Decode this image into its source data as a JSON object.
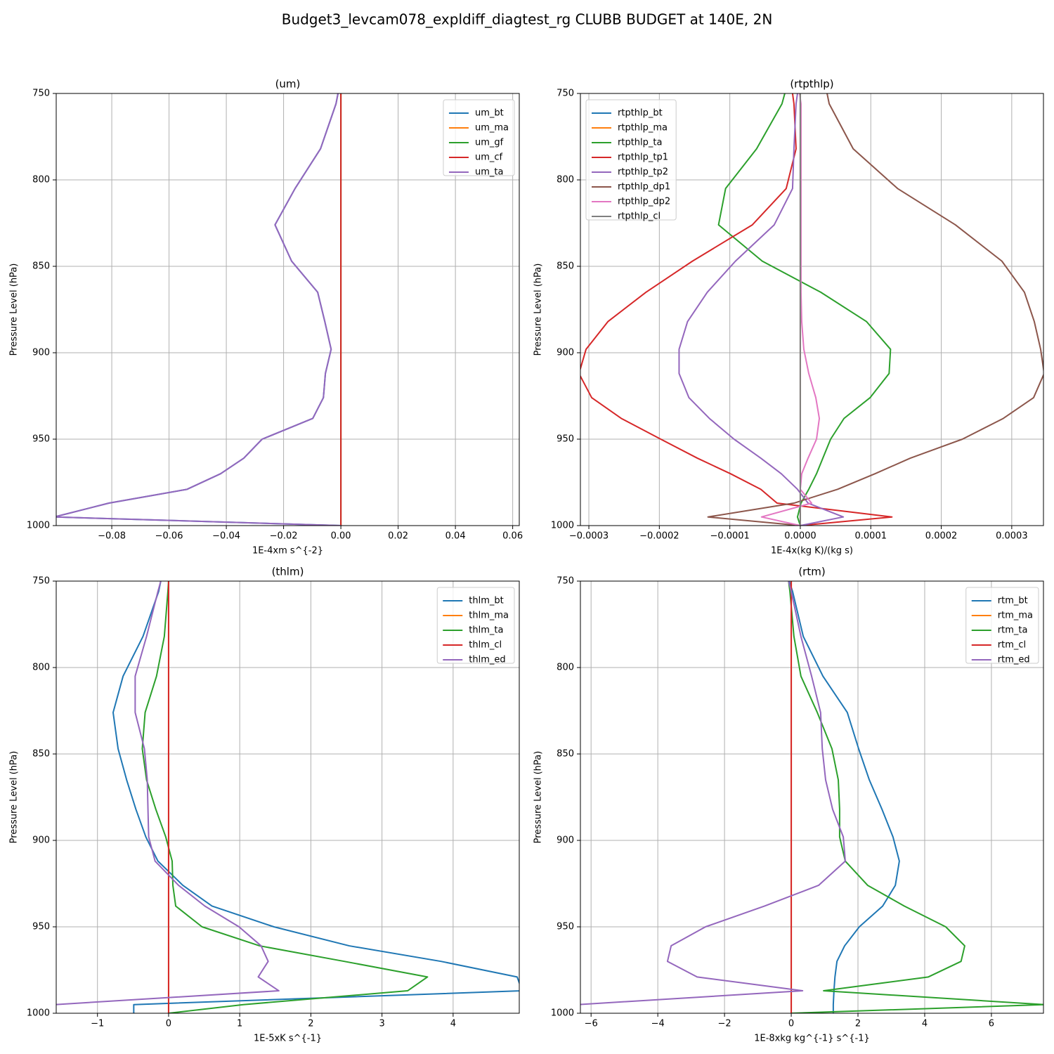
{
  "title": "Budget3_levcam078_expldiff_diagtest_rg CLUBB BUDGET at 140E, 2N",
  "chart_data": [
    {
      "type": "line",
      "title": "(um)",
      "xlabel": "1E-4xm s^{-2}",
      "ylabel": "Pressure Level (hPa)",
      "y": [
        750,
        756,
        782,
        805,
        826,
        847,
        865,
        882,
        898,
        912,
        926,
        938,
        950,
        961,
        970,
        979,
        987,
        995,
        1000
      ],
      "xlim": [
        -0.0994,
        0.0623
      ],
      "ylim": [
        750,
        1000
      ],
      "y_inverted": true,
      "xticks": [
        {
          "value": -0.08,
          "label": "−0.08"
        },
        {
          "value": -0.06,
          "label": "−0.06"
        },
        {
          "value": -0.04,
          "label": "−0.04"
        },
        {
          "value": -0.02,
          "label": "−0.02"
        },
        {
          "value": 0,
          "label": "0.00"
        },
        0.02,
        0.04,
        0.06
      ],
      "yticks": [
        750,
        800,
        850,
        900,
        950,
        1000
      ],
      "grid": true,
      "legend": "upper right",
      "series": [
        {
          "name": "um_bt",
          "color": "#1f77b4",
          "values": [
            -0.001,
            -0.0017,
            -0.0071,
            -0.016,
            -0.023,
            -0.0172,
            -0.0081,
            -0.0056,
            -0.0034,
            -0.0054,
            -0.0061,
            -0.0098,
            -0.0275,
            -0.0339,
            -0.042,
            -0.0537,
            -0.081,
            -0.1,
            0
          ]
        },
        {
          "name": "um_ma",
          "color": "#ff7f0e",
          "values": [
            0,
            0,
            0,
            0,
            0,
            0,
            0,
            0,
            0,
            0,
            0,
            0,
            0,
            0,
            0,
            0,
            0,
            0,
            0
          ]
        },
        {
          "name": "um_gf",
          "color": "#2ca02c",
          "values": [
            0,
            0,
            0,
            0,
            0,
            0,
            0,
            0,
            0,
            0,
            0,
            0,
            0,
            0,
            0,
            0,
            0,
            0,
            0
          ]
        },
        {
          "name": "um_cf",
          "color": "#d62728",
          "values": [
            0,
            0,
            0,
            0,
            0,
            0,
            0,
            0,
            0,
            0,
            0,
            0,
            0,
            0,
            0,
            0,
            0,
            0,
            0
          ]
        },
        {
          "name": "um_ta",
          "color": "#9467bd",
          "values": [
            -0.001,
            -0.0017,
            -0.0071,
            -0.016,
            -0.023,
            -0.0172,
            -0.0081,
            -0.0056,
            -0.0034,
            -0.0054,
            -0.0061,
            -0.0098,
            -0.0275,
            -0.0339,
            -0.042,
            -0.0537,
            -0.081,
            -0.1,
            0
          ]
        }
      ]
    },
    {
      "type": "line",
      "title": "(rtpthlp)",
      "xlabel": "1E-4x(kg K)/(kg s)",
      "ylabel": "Pressure Level (hPa)",
      "y": [
        750,
        756,
        782,
        805,
        826,
        847,
        865,
        882,
        898,
        912,
        926,
        938,
        950,
        961,
        970,
        979,
        987,
        995,
        1000
      ],
      "xlim": [
        -0.000312,
        0.000345
      ],
      "ylim": [
        750,
        1000
      ],
      "y_inverted": true,
      "xticks": [
        {
          "value": -0.0003,
          "label": "−0.0003"
        },
        {
          "value": -0.0002,
          "label": "−0.0002"
        },
        {
          "value": -0.0001,
          "label": "−0.0001"
        },
        {
          "value": 0,
          "label": "0.0000"
        },
        0.0001,
        0.0002,
        0.0003
      ],
      "yticks": [
        750,
        800,
        850,
        900,
        950,
        1000
      ],
      "grid": true,
      "legend": "upper left",
      "series": [
        {
          "name": "rtpthlp_bt",
          "color": "#1f77b4",
          "values": [
            0,
            0,
            0,
            0,
            0,
            0,
            0,
            0,
            0,
            0,
            0,
            0,
            0,
            0,
            0,
            0,
            0,
            0,
            0
          ]
        },
        {
          "name": "rtpthlp_ma",
          "color": "#ff7f0e",
          "values": [
            0,
            0,
            0,
            0,
            0,
            0,
            0,
            0,
            0,
            0,
            0,
            0,
            0,
            0,
            0,
            0,
            0,
            0,
            0
          ]
        },
        {
          "name": "rtpthlp_ta",
          "color": "#2ca02c",
          "values": [
            -2.2e-05,
            -2.6e-05,
            -6.2e-05,
            -0.000106,
            -0.000116,
            -5.4e-05,
            2.9e-05,
            9.4e-05,
            0.000128,
            0.000126,
            9.9e-05,
            6.2e-05,
            4.3e-05,
            3.2e-05,
            2.3e-05,
            1.2e-05,
            1e-06,
            -4e-06,
            0
          ]
        },
        {
          "name": "rtpthlp_tp1",
          "color": "#d62728",
          "values": [
            -1.1e-05,
            -9e-06,
            -6e-06,
            -2e-05,
            -6.8e-05,
            -0.000153,
            -0.000219,
            -0.000273,
            -0.000304,
            -0.000314,
            -0.000296,
            -0.000254,
            -0.000198,
            -0.000146,
            -9.9e-05,
            -5.6e-05,
            -3.3e-05,
            0.00013,
            0
          ]
        },
        {
          "name": "rtpthlp_tp2",
          "color": "#9467bd",
          "values": [
            -4e-06,
            -6e-06,
            -9e-06,
            -1.1e-05,
            -3.7e-05,
            -9.2e-05,
            -0.000132,
            -0.00016,
            -0.000172,
            -0.000172,
            -0.000158,
            -0.000129,
            -9.4e-05,
            -5.6e-05,
            -2.7e-05,
            -4e-06,
            1.1e-05,
            6.1e-05,
            0
          ]
        },
        {
          "name": "rtpthlp_dp1",
          "color": "#8c564b",
          "values": [
            3.8e-05,
            4.1e-05,
            7.5e-05,
            0.000138,
            0.00022,
            0.000286,
            0.000318,
            0.000332,
            0.000341,
            0.000346,
            0.000331,
            0.000288,
            0.00023,
            0.000156,
            0.000106,
            5.3e-05,
            -9e-06,
            -0.000131,
            0
          ]
        },
        {
          "name": "rtpthlp_dp2",
          "color": "#e377c2",
          "values": [
            -1e-06,
            1e-06,
            1e-06,
            1e-06,
            1e-06,
            1e-06,
            1e-06,
            2e-06,
            5e-06,
            1.2e-05,
            2.2e-05,
            2.7e-05,
            2.3e-05,
            1.1e-05,
            2e-06,
            0,
            1.6e-05,
            -5.5e-05,
            0
          ]
        },
        {
          "name": "rtpthlp_cl",
          "color": "#7f7f7f",
          "values": [
            0,
            0,
            0,
            0,
            0,
            0,
            0,
            0,
            0,
            0,
            0,
            0,
            0,
            0,
            0,
            0,
            0,
            0,
            0
          ]
        }
      ]
    },
    {
      "type": "line",
      "title": "(thlm)",
      "xlabel": "1E-5xK s^{-1}",
      "ylabel": "Pressure Level (hPa)",
      "y": [
        750,
        756,
        782,
        805,
        826,
        847,
        865,
        882,
        898,
        912,
        926,
        938,
        950,
        961,
        970,
        979,
        987,
        995,
        1000
      ],
      "xlim": [
        -1.58,
        4.93
      ],
      "ylim": [
        750,
        1000
      ],
      "y_inverted": true,
      "xticks": [
        {
          "value": -1,
          "label": "−1"
        },
        0,
        1,
        2,
        3,
        4
      ],
      "yticks": [
        750,
        800,
        850,
        900,
        950,
        1000
      ],
      "grid": true,
      "legend": "upper right",
      "series": [
        {
          "name": "thlm_bt",
          "color": "#1f77b4",
          "values": [
            -0.11,
            -0.14,
            -0.36,
            -0.64,
            -0.78,
            -0.71,
            -0.59,
            -0.46,
            -0.32,
            -0.15,
            0.2,
            0.61,
            1.48,
            2.54,
            3.83,
            4.9,
            4.97,
            -0.49,
            -0.49
          ]
        },
        {
          "name": "thlm_ma",
          "color": "#ff7f0e",
          "values": [
            0,
            0,
            0,
            0,
            0,
            0,
            0,
            0,
            0,
            0,
            0,
            0,
            0,
            0,
            0,
            0,
            0,
            0,
            0
          ]
        },
        {
          "name": "thlm_ta",
          "color": "#2ca02c",
          "values": [
            0,
            -0.01,
            -0.06,
            -0.17,
            -0.33,
            -0.37,
            -0.31,
            -0.18,
            -0.04,
            0.05,
            0.06,
            0.1,
            0.47,
            1.28,
            2.47,
            3.64,
            3.36,
            1.05,
            0
          ]
        },
        {
          "name": "thlm_cl",
          "color": "#d62728",
          "values": [
            0,
            0,
            0,
            0,
            0,
            0,
            0,
            0,
            0,
            0,
            0,
            0,
            0,
            0,
            0,
            0,
            0,
            0,
            0
          ]
        },
        {
          "name": "thlm_ed",
          "color": "#9467bd",
          "values": [
            -0.11,
            -0.15,
            -0.31,
            -0.47,
            -0.47,
            -0.34,
            -0.3,
            -0.29,
            -0.28,
            -0.19,
            0.14,
            0.51,
            0.99,
            1.3,
            1.4,
            1.26,
            1.55,
            -1.6,
            -1.7
          ]
        }
      ]
    },
    {
      "type": "line",
      "title": "(rtm)",
      "xlabel": "1E-8xkg kg^{-1} s^{-1}",
      "ylabel": "Pressure Level (hPa)",
      "y": [
        750,
        756,
        782,
        805,
        826,
        847,
        865,
        882,
        898,
        912,
        926,
        938,
        950,
        961,
        970,
        979,
        987,
        995,
        1000
      ],
      "xlim": [
        -6.32,
        7.56
      ],
      "ylim": [
        750,
        1000
      ],
      "y_inverted": true,
      "xticks": [
        {
          "value": -6,
          "label": "−6"
        },
        {
          "value": -4,
          "label": "−4"
        },
        {
          "value": -2,
          "label": "−2"
        },
        0,
        2,
        4,
        6
      ],
      "yticks": [
        750,
        800,
        850,
        900,
        950,
        1000
      ],
      "grid": true,
      "legend": "upper right",
      "series": [
        {
          "name": "rtm_bt",
          "color": "#1f77b4",
          "values": [
            -0.06,
            0.04,
            0.36,
            0.95,
            1.68,
            2.02,
            2.34,
            2.72,
            3.05,
            3.24,
            3.12,
            2.74,
            2.04,
            1.6,
            1.37,
            1.31,
            1.28,
            1.26,
            1.26
          ]
        },
        {
          "name": "rtm_ma",
          "color": "#ff7f0e",
          "values": [
            0,
            0,
            0,
            0,
            0,
            0,
            0,
            0,
            0,
            0,
            0,
            0,
            0,
            0,
            0,
            0,
            0,
            0,
            0
          ]
        },
        {
          "name": "rtm_ta",
          "color": "#2ca02c",
          "values": [
            -0.08,
            -0.04,
            0.08,
            0.29,
            0.78,
            1.22,
            1.41,
            1.45,
            1.45,
            1.62,
            2.29,
            3.39,
            4.63,
            5.2,
            5.09,
            4.11,
            0.97,
            7.6,
            0
          ]
        },
        {
          "name": "rtm_cl",
          "color": "#d62728",
          "values": [
            0,
            0,
            0,
            0,
            0,
            0,
            0,
            0,
            0,
            0,
            0,
            0,
            0,
            0,
            0,
            0,
            0,
            0,
            0
          ]
        },
        {
          "name": "rtm_ed",
          "color": "#9467bd",
          "values": [
            -0.08,
            0,
            0.29,
            0.61,
            0.88,
            0.93,
            1.03,
            1.24,
            1.56,
            1.62,
            0.82,
            -0.8,
            -2.57,
            -3.6,
            -3.71,
            -2.82,
            0.34,
            -6.4,
            -6.5
          ]
        }
      ]
    }
  ]
}
